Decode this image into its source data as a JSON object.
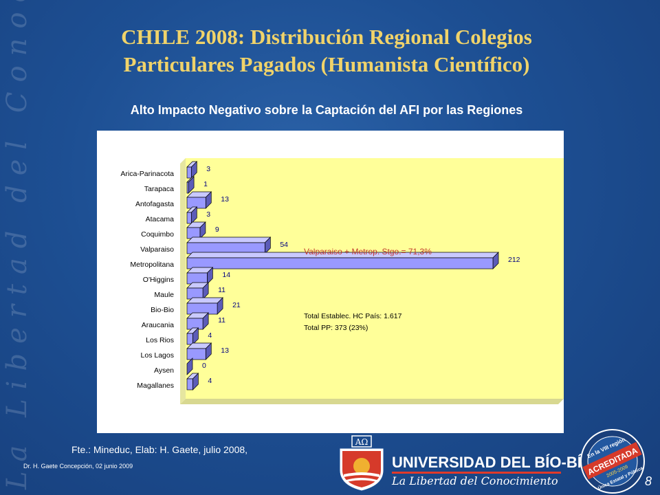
{
  "slide": {
    "side_watermark": "La Libertad del Conocimiento",
    "title_line1": "CHILE 2008: Distribución Regional Colegios",
    "title_line2": "Particulares Pagados (Humanista Científico)",
    "subtitle": "Alto Impacto Negativo sobre la Captación del AFI por las Regiones",
    "source": "Fte.: Mineduc, Elab: H. Gaete, julio 2008,",
    "footer": "Dr. H. Gaete   Concepción, 02 junio 2009",
    "page_number": "8",
    "university_name": "UNIVERSIDAD DEL BÍO-BÍO",
    "university_slogan": "La Libertad del Conocimiento",
    "seal_text": [
      "En la VIII región",
      "ACREDITADA",
      "2005-2009",
      "Única Estatal y Pública"
    ]
  },
  "chart_data": {
    "type": "bar",
    "orientation": "horizontal",
    "style": "3d",
    "title": "",
    "xlabel": "",
    "ylabel": "",
    "xlim": [
      0,
      212
    ],
    "grid": false,
    "legend": "none",
    "categories": [
      "Arica-Parinacota",
      "Tarapaca",
      "Antofagasta",
      "Atacama",
      "Coquimbo",
      "Valparaiso",
      "Metropolitana",
      "O'Higgins",
      "Maule",
      "Bio-Bio",
      "Araucania",
      "Los Rios",
      "Los Lagos",
      "Aysen",
      "Magallanes"
    ],
    "values": [
      3,
      1,
      13,
      3,
      9,
      54,
      212,
      14,
      11,
      21,
      11,
      4,
      13,
      0,
      4
    ],
    "annotations": [
      {
        "text": "Valparaiso + Metrop. Stgo.= 71,3%",
        "color": "#c0392b"
      },
      {
        "text": "Total Establec. HC País: 1.617",
        "color": "#000000"
      },
      {
        "text": "Total PP: 373 (23%)",
        "color": "#000000"
      }
    ],
    "colors": {
      "bar_front": "#9999ff",
      "bar_top": "#c9c9ff",
      "bar_side": "#5c5cb8",
      "plot_area": "#ffff99",
      "value_label": "#000080"
    }
  }
}
